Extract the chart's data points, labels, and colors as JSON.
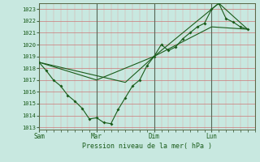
{
  "xlabel": "Pression niveau de la mer( hPa )",
  "background_color": "#c8e8e0",
  "line_color": "#1a5c1a",
  "ylim": [
    1013,
    1023.5
  ],
  "yticks": [
    1013,
    1014,
    1015,
    1016,
    1017,
    1018,
    1019,
    1020,
    1021,
    1022,
    1023
  ],
  "xtick_labels": [
    "Sam",
    "Mar",
    "Dim",
    "Lun"
  ],
  "xtick_positions": [
    0,
    48,
    96,
    144
  ],
  "xlim": [
    0,
    180
  ],
  "vline_positions": [
    0,
    48,
    96,
    144
  ],
  "series1": [
    [
      0,
      1018.5
    ],
    [
      6,
      1017.8
    ],
    [
      12,
      1017.0
    ],
    [
      18,
      1016.5
    ],
    [
      24,
      1015.7
    ],
    [
      30,
      1015.2
    ],
    [
      36,
      1014.6
    ],
    [
      42,
      1013.7
    ],
    [
      48,
      1013.8
    ],
    [
      54,
      1013.4
    ],
    [
      60,
      1013.3
    ],
    [
      66,
      1014.5
    ],
    [
      72,
      1015.5
    ],
    [
      78,
      1016.5
    ],
    [
      84,
      1017.0
    ],
    [
      90,
      1018.2
    ],
    [
      96,
      1019.0
    ],
    [
      102,
      1020.0
    ],
    [
      108,
      1019.5
    ],
    [
      114,
      1019.8
    ],
    [
      120,
      1020.5
    ],
    [
      126,
      1021.0
    ],
    [
      132,
      1021.5
    ],
    [
      138,
      1021.8
    ],
    [
      144,
      1023.0
    ],
    [
      150,
      1023.5
    ],
    [
      156,
      1022.2
    ],
    [
      162,
      1021.9
    ],
    [
      168,
      1021.5
    ],
    [
      174,
      1021.3
    ]
  ],
  "series2": [
    [
      0,
      1018.5
    ],
    [
      48,
      1017.0
    ],
    [
      96,
      1019.0
    ],
    [
      144,
      1021.5
    ],
    [
      174,
      1021.3
    ]
  ],
  "series3": [
    [
      0,
      1018.5
    ],
    [
      72,
      1016.8
    ],
    [
      96,
      1019.0
    ],
    [
      150,
      1023.5
    ],
    [
      174,
      1021.3
    ]
  ]
}
